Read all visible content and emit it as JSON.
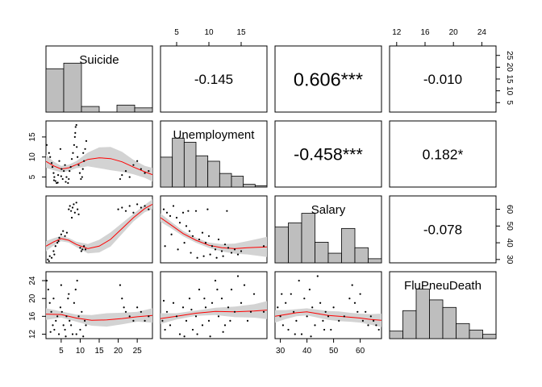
{
  "chart_data": {
    "type": "scatter-matrix",
    "variables": [
      "Suicide",
      "Unemployment",
      "Salary",
      "FluPneuDeath"
    ],
    "correlations": [
      {
        "row": 0,
        "col": 1,
        "label": "-0.145",
        "value": -0.145
      },
      {
        "row": 0,
        "col": 2,
        "label": "0.606***",
        "value": 0.606
      },
      {
        "row": 0,
        "col": 3,
        "label": "-0.010",
        "value": -0.01
      },
      {
        "row": 1,
        "col": 2,
        "label": "-0.458***",
        "value": -0.458
      },
      {
        "row": 1,
        "col": 3,
        "label": "0.182*",
        "value": 0.182
      },
      {
        "row": 2,
        "col": 3,
        "label": "-0.078",
        "value": -0.078
      }
    ],
    "ranges": {
      "Suicide": [
        1,
        29
      ],
      "Unemployment": [
        2.5,
        19
      ],
      "Salary": [
        28,
        68
      ],
      "FluPneuDeath": [
        11,
        26
      ]
    },
    "ticks": {
      "Suicide": [
        5,
        10,
        15,
        20,
        25
      ],
      "Unemployment": [
        5,
        10,
        15
      ],
      "Salary": [
        30,
        40,
        50,
        60
      ],
      "FluPneuDeath": [
        12,
        16,
        20,
        24
      ]
    },
    "histograms": {
      "Suicide": {
        "breaks": [
          0,
          5,
          10,
          15,
          20,
          25,
          30
        ],
        "counts": [
          31,
          35,
          4,
          0,
          5,
          3
        ]
      },
      "Unemployment": {
        "breaks": [
          2,
          4,
          6,
          8,
          10,
          12,
          14,
          16,
          18,
          20
        ],
        "counts": [
          22,
          36,
          33,
          23,
          19,
          10,
          8,
          2,
          1
        ]
      },
      "Salary": {
        "breaks": [
          30,
          35,
          40,
          45,
          50,
          55,
          60,
          65,
          70
        ],
        "counts": [
          26,
          29,
          36,
          15,
          7,
          25,
          11,
          3
        ]
      },
      "FluPneuDeath": {
        "breaks": [
          10,
          12,
          14,
          16,
          18,
          20,
          22,
          24,
          26
        ],
        "counts": [
          7,
          26,
          46,
          36,
          29,
          14,
          8,
          4
        ]
      }
    },
    "smooth_fits": {
      "Unemployment~Suicide": {
        "x": [
          1,
          3,
          5,
          7,
          9,
          12,
          15,
          18,
          21,
          24,
          27,
          29
        ],
        "y": [
          8.9,
          7.8,
          7.0,
          7.3,
          8.1,
          9.4,
          9.8,
          9.6,
          8.8,
          7.5,
          6.3,
          5.6
        ],
        "band": [
          1.6,
          1.1,
          0.8,
          0.8,
          0.9,
          1.7,
          2.6,
          2.9,
          2.5,
          1.8,
          1.5,
          1.7
        ]
      },
      "Salary~Suicide": {
        "x": [
          1,
          3,
          5,
          7,
          9,
          12,
          15,
          18,
          21,
          24,
          27,
          29
        ],
        "y": [
          38,
          40.5,
          42.5,
          41.5,
          39,
          36.5,
          38,
          42,
          48.5,
          55,
          60.5,
          63
        ],
        "band": [
          3,
          2.2,
          1.6,
          1.4,
          1.6,
          2.8,
          3.8,
          4.2,
          3.2,
          2.3,
          2.2,
          3
        ]
      },
      "Salary~Unemployment": {
        "x": [
          2.5,
          4,
          6,
          8,
          10,
          12,
          14,
          16,
          19
        ],
        "y": [
          55,
          51,
          45.5,
          41.5,
          38.5,
          37,
          36.5,
          37,
          37.5
        ],
        "band": [
          2.5,
          2,
          1.6,
          1.5,
          1.6,
          2.2,
          3,
          4,
          6
        ]
      },
      "FluPneuDeath~Suicide": {
        "x": [
          1,
          5,
          9,
          13,
          17,
          21,
          25,
          29
        ],
        "y": [
          16.5,
          16.4,
          15.6,
          15.1,
          15.2,
          15.5,
          15.9,
          16.2
        ],
        "band": [
          1.3,
          0.7,
          0.8,
          1.2,
          1.5,
          1.3,
          1.1,
          1.6
        ]
      },
      "FluPneuDeath~Unemployment": {
        "x": [
          2.5,
          5,
          8,
          11,
          14,
          17,
          19
        ],
        "y": [
          15.5,
          16.0,
          16.7,
          17.1,
          17.0,
          17.2,
          17.4
        ],
        "band": [
          1.2,
          0.7,
          0.6,
          0.8,
          1.2,
          1.5,
          2.0
        ]
      },
      "FluPneuDeath~Salary": {
        "x": [
          28,
          32,
          36,
          40,
          44,
          48,
          52,
          56,
          60,
          64,
          68
        ],
        "y": [
          16.0,
          16.4,
          16.8,
          17.0,
          16.6,
          16.2,
          16.0,
          15.8,
          15.6,
          15.3,
          15.1
        ],
        "band": [
          1.4,
          1.0,
          0.8,
          0.8,
          0.9,
          1.0,
          1.1,
          1.0,
          1.0,
          1.2,
          1.5
        ]
      }
    },
    "scatter": {
      "Unemployment~Suicide": [
        [
          1.2,
          13
        ],
        [
          1.8,
          11
        ],
        [
          2.1,
          10
        ],
        [
          2.5,
          8.5
        ],
        [
          2.7,
          7.5
        ],
        [
          3,
          6
        ],
        [
          3.2,
          5
        ],
        [
          3.5,
          4
        ],
        [
          3.8,
          3.5
        ],
        [
          4.2,
          5.5
        ],
        [
          4.5,
          9
        ],
        [
          4.8,
          12
        ],
        [
          5.1,
          7
        ],
        [
          5.4,
          4.5
        ],
        [
          5.7,
          6.5
        ],
        [
          6,
          8
        ],
        [
          6.4,
          5
        ],
        [
          6.8,
          3.5
        ],
        [
          7.2,
          6.5
        ],
        [
          7.5,
          7.5
        ],
        [
          7.8,
          9.5
        ],
        [
          8.1,
          11
        ],
        [
          8.4,
          13
        ],
        [
          8.6,
          15
        ],
        [
          8.8,
          17.5
        ],
        [
          9.1,
          12.5
        ],
        [
          9.3,
          10
        ],
        [
          9.6,
          8
        ],
        [
          9.9,
          6
        ],
        [
          10.2,
          4.5
        ],
        [
          10.5,
          5
        ],
        [
          10.7,
          7
        ],
        [
          11,
          9
        ],
        [
          11.3,
          12
        ],
        [
          11.6,
          14
        ],
        [
          9,
          18
        ],
        [
          8.7,
          16
        ],
        [
          10.8,
          11
        ],
        [
          7,
          4.5
        ],
        [
          6.2,
          3.8
        ],
        [
          3.1,
          4.2
        ],
        [
          4.1,
          3.6
        ],
        [
          5,
          5.2
        ],
        [
          21,
          5.5
        ],
        [
          22,
          6.5
        ],
        [
          23,
          5
        ],
        [
          24,
          8
        ],
        [
          25,
          9
        ],
        [
          26,
          7
        ],
        [
          27,
          6
        ],
        [
          28,
          6.5
        ],
        [
          20.5,
          4.5
        ]
      ],
      "Salary~Suicide": [
        [
          1.5,
          30
        ],
        [
          2,
          32
        ],
        [
          2.5,
          31
        ],
        [
          3,
          35
        ],
        [
          3.5,
          38
        ],
        [
          4,
          40
        ],
        [
          4.5,
          43
        ],
        [
          5,
          45
        ],
        [
          5.5,
          47
        ],
        [
          6,
          44
        ],
        [
          6.5,
          46
        ],
        [
          7,
          60
        ],
        [
          7.3,
          62
        ],
        [
          7.6,
          59
        ],
        [
          8,
          61
        ],
        [
          8.3,
          63
        ],
        [
          8.6,
          58
        ],
        [
          9,
          64
        ],
        [
          9.3,
          60
        ],
        [
          9.6,
          57
        ],
        [
          10,
          37
        ],
        [
          10.3,
          35
        ],
        [
          10.6,
          36
        ],
        [
          11,
          38
        ],
        [
          11.4,
          36
        ],
        [
          7.8,
          55
        ],
        [
          1.8,
          29
        ],
        [
          3.2,
          33
        ],
        [
          4.3,
          41
        ],
        [
          20,
          60
        ],
        [
          21,
          61
        ],
        [
          22,
          59
        ],
        [
          23,
          62
        ],
        [
          24,
          58
        ],
        [
          25,
          63
        ],
        [
          26,
          61
        ],
        [
          27,
          62
        ],
        [
          28,
          60
        ]
      ],
      "Salary~Unemployment": [
        [
          3,
          60
        ],
        [
          3.5,
          58
        ],
        [
          4,
          56
        ],
        [
          4.5,
          62
        ],
        [
          5,
          55
        ],
        [
          5.5,
          52
        ],
        [
          6,
          58
        ],
        [
          6.5,
          50
        ],
        [
          7,
          47
        ],
        [
          7.5,
          44
        ],
        [
          8,
          59
        ],
        [
          8.5,
          42
        ],
        [
          9,
          46
        ],
        [
          9.5,
          40
        ],
        [
          10,
          44
        ],
        [
          10.5,
          38
        ],
        [
          11,
          36
        ],
        [
          11.5,
          42
        ],
        [
          12,
          35
        ],
        [
          12.5,
          39
        ],
        [
          13,
          37
        ],
        [
          13.5,
          34
        ],
        [
          14,
          36
        ],
        [
          14.5,
          33
        ],
        [
          15,
          35
        ],
        [
          3.2,
          38
        ],
        [
          4.2,
          45
        ],
        [
          5.2,
          36
        ],
        [
          6.2,
          40
        ],
        [
          7.2,
          34
        ],
        [
          8.2,
          31
        ],
        [
          9.2,
          32
        ],
        [
          10.2,
          33
        ],
        [
          11.2,
          31
        ],
        [
          12.2,
          32
        ],
        [
          6.8,
          59
        ],
        [
          9.8,
          60
        ],
        [
          12.8,
          59
        ],
        [
          18.5,
          38
        ]
      ],
      "FluPneuDeath~Suicide": [
        [
          1.2,
          24
        ],
        [
          1.6,
          22
        ],
        [
          2,
          19
        ],
        [
          2.4,
          17
        ],
        [
          2.8,
          14
        ],
        [
          3.2,
          13
        ],
        [
          3.6,
          15
        ],
        [
          4,
          16
        ],
        [
          4.4,
          12
        ],
        [
          4.8,
          18
        ],
        [
          5.2,
          17
        ],
        [
          5.6,
          14
        ],
        [
          6,
          13
        ],
        [
          6.4,
          16
        ],
        [
          6.8,
          20
        ],
        [
          7.2,
          15
        ],
        [
          7.6,
          14
        ],
        [
          8,
          12
        ],
        [
          8.4,
          19
        ],
        [
          8.8,
          22
        ],
        [
          9.2,
          24
        ],
        [
          9.6,
          16
        ],
        [
          10,
          13
        ],
        [
          10.4,
          17
        ],
        [
          10.8,
          11.5
        ],
        [
          11.2,
          15
        ],
        [
          7,
          21
        ],
        [
          5,
          23
        ],
        [
          3,
          20
        ],
        [
          20.5,
          23
        ],
        [
          21,
          20
        ],
        [
          21.5,
          18
        ],
        [
          22,
          17
        ],
        [
          23,
          16
        ],
        [
          24,
          15
        ],
        [
          25,
          18
        ],
        [
          26,
          17
        ],
        [
          27,
          15
        ],
        [
          28,
          16
        ],
        [
          9,
          12
        ],
        [
          2.2,
          12.5
        ],
        [
          6.2,
          11.5
        ],
        [
          11.5,
          14
        ]
      ],
      "FluPneuDeath~Unemployment": [
        [
          2.8,
          15
        ],
        [
          3.2,
          13
        ],
        [
          3.5,
          17
        ],
        [
          4,
          14
        ],
        [
          4.5,
          19
        ],
        [
          5,
          16
        ],
        [
          5.5,
          12
        ],
        [
          6,
          18
        ],
        [
          6.5,
          15
        ],
        [
          7,
          20
        ],
        [
          7.5,
          13
        ],
        [
          8,
          16
        ],
        [
          8.5,
          22
        ],
        [
          9,
          14
        ],
        [
          9.5,
          18
        ],
        [
          10,
          15
        ],
        [
          10.5,
          19
        ],
        [
          11,
          24
        ],
        [
          11.5,
          16
        ],
        [
          12,
          20
        ],
        [
          12.5,
          14
        ],
        [
          13,
          18
        ],
        [
          13.5,
          22
        ],
        [
          14,
          17
        ],
        [
          14.5,
          25
        ],
        [
          15,
          19
        ],
        [
          15.5,
          23
        ],
        [
          16,
          15
        ],
        [
          16.5,
          17
        ],
        [
          17,
          21
        ],
        [
          18.5,
          17
        ],
        [
          6.2,
          11.5
        ],
        [
          8.2,
          12
        ],
        [
          10.2,
          11.5
        ],
        [
          12.2,
          12.5
        ],
        [
          3,
          19.5
        ],
        [
          7.3,
          17.5
        ],
        [
          9.3,
          20
        ],
        [
          11.3,
          22
        ],
        [
          13.3,
          15
        ]
      ],
      "FluPneuDeath~Salary": [
        [
          29,
          18
        ],
        [
          30,
          16
        ],
        [
          31,
          14
        ],
        [
          32,
          19
        ],
        [
          33,
          13
        ],
        [
          34,
          21
        ],
        [
          35,
          17
        ],
        [
          36,
          15
        ],
        [
          37,
          24
        ],
        [
          38,
          12
        ],
        [
          39,
          20
        ],
        [
          40,
          16
        ],
        [
          41,
          22
        ],
        [
          42,
          18
        ],
        [
          43,
          14
        ],
        [
          44,
          25
        ],
        [
          45,
          19
        ],
        [
          46,
          15
        ],
        [
          47,
          17
        ],
        [
          48,
          16
        ],
        [
          49,
          13
        ],
        [
          50,
          18
        ],
        [
          52,
          15
        ],
        [
          54,
          16
        ],
        [
          56,
          20
        ],
        [
          57,
          23
        ],
        [
          58,
          19
        ],
        [
          59,
          17
        ],
        [
          60,
          21
        ],
        [
          61,
          15
        ],
        [
          62,
          17
        ],
        [
          63,
          14
        ],
        [
          64,
          16
        ],
        [
          65,
          15
        ],
        [
          66,
          14
        ],
        [
          67,
          13
        ],
        [
          30.5,
          21
        ],
        [
          35.5,
          12
        ],
        [
          41.5,
          11.5
        ],
        [
          46.5,
          13
        ]
      ]
    }
  }
}
